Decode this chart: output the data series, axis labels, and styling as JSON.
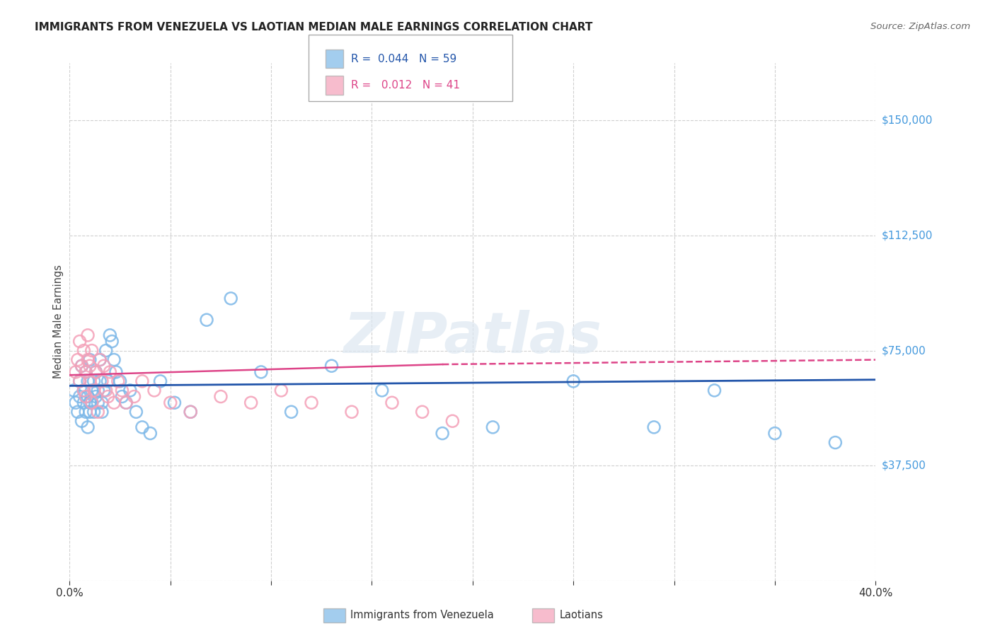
{
  "title": "IMMIGRANTS FROM VENEZUELA VS LAOTIAN MEDIAN MALE EARNINGS CORRELATION CHART",
  "source": "Source: ZipAtlas.com",
  "ylabel": "Median Male Earnings",
  "xlim": [
    0.0,
    0.4
  ],
  "ylim": [
    0,
    168750
  ],
  "yticks": [
    0,
    37500,
    75000,
    112500,
    150000
  ],
  "ytick_labels": [
    "",
    "$37,500",
    "$75,000",
    "$112,500",
    "$150,000"
  ],
  "bg_color": "#ffffff",
  "grid_color": "#d0d0d0",
  "blue_color": "#7db8e8",
  "pink_color": "#f4a0b8",
  "blue_line_color": "#2255aa",
  "pink_line_color": "#dd4488",
  "legend_R_blue": "0.044",
  "legend_N_blue": "59",
  "legend_R_pink": "0.012",
  "legend_N_pink": "41",
  "watermark": "ZIPatlas",
  "blue_points_x": [
    0.002,
    0.003,
    0.004,
    0.005,
    0.005,
    0.006,
    0.006,
    0.007,
    0.007,
    0.008,
    0.008,
    0.009,
    0.009,
    0.009,
    0.01,
    0.01,
    0.01,
    0.011,
    0.011,
    0.012,
    0.012,
    0.013,
    0.013,
    0.014,
    0.014,
    0.015,
    0.015,
    0.016,
    0.016,
    0.017,
    0.018,
    0.019,
    0.02,
    0.021,
    0.022,
    0.023,
    0.025,
    0.026,
    0.028,
    0.03,
    0.033,
    0.036,
    0.04,
    0.045,
    0.052,
    0.06,
    0.068,
    0.08,
    0.095,
    0.11,
    0.13,
    0.155,
    0.185,
    0.21,
    0.25,
    0.29,
    0.32,
    0.35,
    0.38
  ],
  "blue_points_y": [
    62000,
    58000,
    55000,
    65000,
    60000,
    52000,
    70000,
    58000,
    62000,
    55000,
    68000,
    60000,
    50000,
    65000,
    58000,
    55000,
    72000,
    62000,
    58000,
    65000,
    55000,
    60000,
    68000,
    58000,
    62000,
    72000,
    65000,
    58000,
    55000,
    62000,
    75000,
    65000,
    80000,
    78000,
    72000,
    68000,
    65000,
    60000,
    58000,
    62000,
    55000,
    50000,
    48000,
    65000,
    58000,
    55000,
    85000,
    92000,
    68000,
    55000,
    70000,
    62000,
    48000,
    50000,
    65000,
    50000,
    62000,
    48000,
    45000
  ],
  "pink_points_x": [
    0.003,
    0.004,
    0.005,
    0.005,
    0.006,
    0.007,
    0.007,
    0.008,
    0.008,
    0.009,
    0.009,
    0.01,
    0.01,
    0.011,
    0.011,
    0.012,
    0.013,
    0.014,
    0.015,
    0.016,
    0.017,
    0.018,
    0.019,
    0.02,
    0.022,
    0.024,
    0.026,
    0.028,
    0.032,
    0.036,
    0.042,
    0.05,
    0.06,
    0.075,
    0.09,
    0.105,
    0.12,
    0.14,
    0.16,
    0.175,
    0.19
  ],
  "pink_points_y": [
    68000,
    72000,
    65000,
    78000,
    70000,
    62000,
    75000,
    68000,
    60000,
    72000,
    80000,
    65000,
    70000,
    58000,
    75000,
    62000,
    68000,
    55000,
    72000,
    65000,
    70000,
    62000,
    60000,
    68000,
    58000,
    65000,
    62000,
    58000,
    60000,
    65000,
    62000,
    58000,
    55000,
    60000,
    58000,
    62000,
    58000,
    55000,
    58000,
    55000,
    52000
  ]
}
